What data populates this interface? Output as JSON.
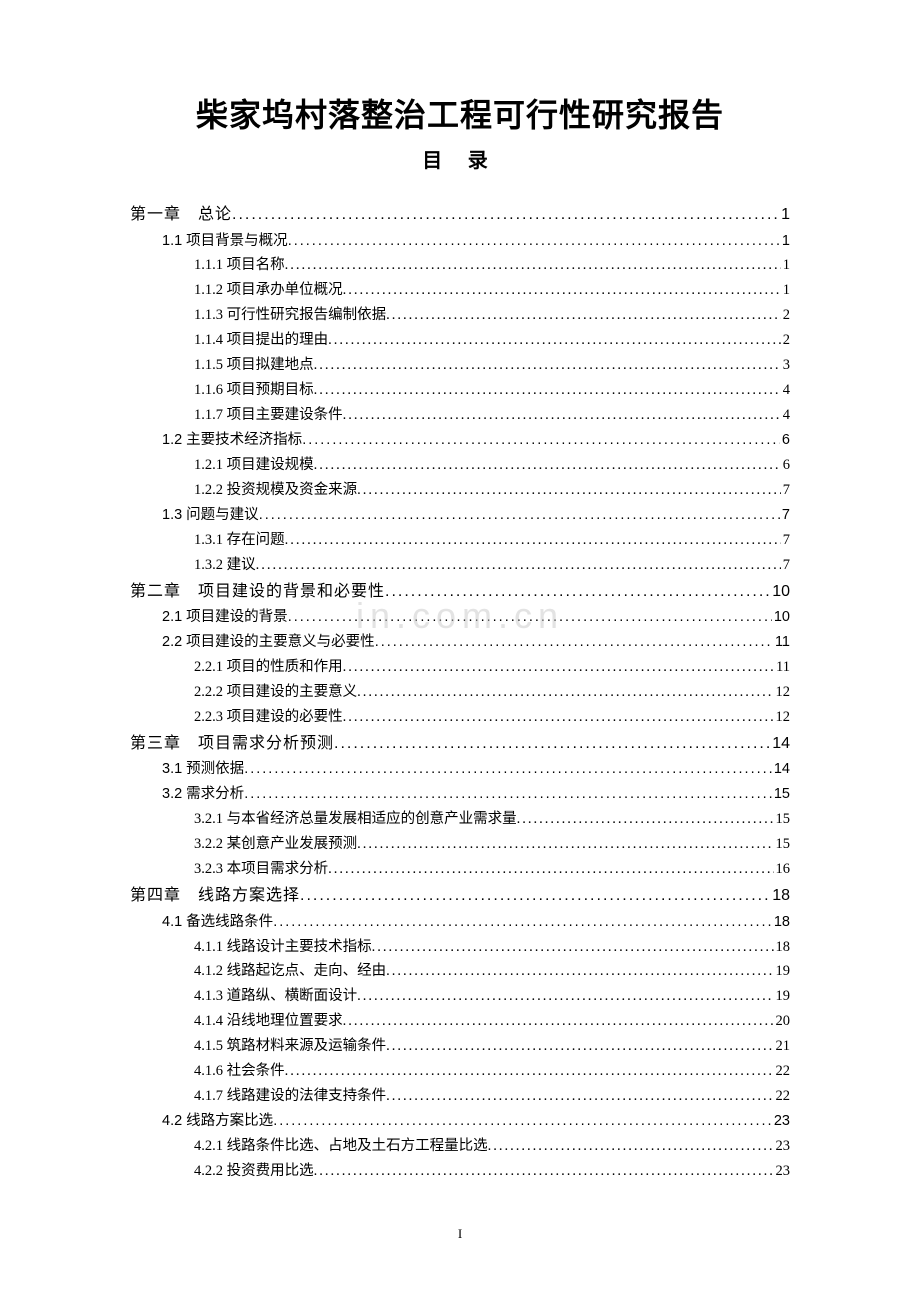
{
  "document": {
    "main_title": "柴家坞村落整治工程可行性研究报告",
    "sub_title": "目 录",
    "watermark": "in.com.cn",
    "page_number": "I",
    "colors": {
      "background": "#ffffff",
      "text": "#000000",
      "watermark": "rgba(200,200,200,0.5)"
    },
    "fonts": {
      "title_family": "SimHei",
      "body_family": "SimSun",
      "title_size": 32,
      "subtitle_size": 20,
      "chapter_size": 16,
      "entry_size": 14.5
    },
    "toc": [
      {
        "level": "chapter",
        "label": "第一章",
        "title": "总论",
        "page": "1"
      },
      {
        "level": "section",
        "label": "1.1",
        "title": "项目背景与概况",
        "page": "1"
      },
      {
        "level": "subsection",
        "label": "1.1.1",
        "title": "项目名称",
        "page": "1"
      },
      {
        "level": "subsection",
        "label": "1.1.2",
        "title": "项目承办单位概况",
        "page": "1"
      },
      {
        "level": "subsection",
        "label": "1.1.3",
        "title": "可行性研究报告编制依据",
        "page": "2"
      },
      {
        "level": "subsection",
        "label": "1.1.4",
        "title": "项目提出的理由",
        "page": "2"
      },
      {
        "level": "subsection",
        "label": "1.1.5",
        "title": "项目拟建地点",
        "page": "3"
      },
      {
        "level": "subsection",
        "label": "1.1.6",
        "title": "项目预期目标",
        "page": "4"
      },
      {
        "level": "subsection",
        "label": "1.1.7",
        "title": "项目主要建设条件",
        "page": "4"
      },
      {
        "level": "section",
        "label": "1.2",
        "title": "主要技术经济指标",
        "page": "6"
      },
      {
        "level": "subsection",
        "label": "1.2.1",
        "title": "项目建设规模",
        "page": "6"
      },
      {
        "level": "subsection",
        "label": "1.2.2",
        "title": "投资规模及资金来源",
        "page": "7"
      },
      {
        "level": "section",
        "label": "1.3",
        "title": "问题与建议",
        "page": "7"
      },
      {
        "level": "subsection",
        "label": "1.3.1",
        "title": "存在问题",
        "page": "7"
      },
      {
        "level": "subsection",
        "label": "1.3.2",
        "title": "建议",
        "page": "7"
      },
      {
        "level": "chapter",
        "label": "第二章",
        "title": "项目建设的背景和必要性",
        "page": "10"
      },
      {
        "level": "section",
        "label": "2.1",
        "title": " 项目建设的背景",
        "page": "10"
      },
      {
        "level": "section",
        "label": "2.2",
        "title": " 项目建设的主要意义与必要性",
        "page": "11"
      },
      {
        "level": "subsection",
        "label": "2.2.1",
        "title": "项目的性质和作用",
        "page": "11"
      },
      {
        "level": "subsection",
        "label": "2.2.2",
        "title": "项目建设的主要意义",
        "page": "12"
      },
      {
        "level": "subsection",
        "label": "2.2.3",
        "title": "项目建设的必要性",
        "page": "12"
      },
      {
        "level": "chapter",
        "label": "第三章",
        "title": "项目需求分析预测",
        "page": "14"
      },
      {
        "level": "section",
        "label": "3.1",
        "title": "预测依据",
        "page": "14"
      },
      {
        "level": "section",
        "label": "3.2",
        "title": "需求分析",
        "page": "15"
      },
      {
        "level": "subsection",
        "label": "3.2.1",
        "title": "与本省经济总量发展相适应的创意产业需求量",
        "page": "15"
      },
      {
        "level": "subsection",
        "label": "3.2.2",
        "title": "某创意产业发展预测",
        "page": "15"
      },
      {
        "level": "subsection",
        "label": "3.2.3",
        "title": " 本项目需求分析",
        "page": "16"
      },
      {
        "level": "chapter",
        "label": "第四章",
        "title": "线路方案选择",
        "page": "18"
      },
      {
        "level": "section",
        "label": "4.1",
        "title": "备选线路条件",
        "page": "18"
      },
      {
        "level": "subsection",
        "label": "4.1.1",
        "title": "线路设计主要技术指标",
        "page": "18"
      },
      {
        "level": "subsection",
        "label": "4.1.2",
        "title": "线路起讫点、走向、经由",
        "page": "19"
      },
      {
        "level": "subsection",
        "label": "4.1.3",
        "title": "道路纵、横断面设计",
        "page": "19"
      },
      {
        "level": "subsection",
        "label": "4.1.4",
        "title": "沿线地理位置要求",
        "page": "20"
      },
      {
        "level": "subsection",
        "label": "4.1.5",
        "title": "筑路材料来源及运输条件",
        "page": "21"
      },
      {
        "level": "subsection",
        "label": "4.1.6",
        "title": "社会条件",
        "page": "22"
      },
      {
        "level": "subsection",
        "label": "4.1.7",
        "title": "线路建设的法律支持条件",
        "page": "22"
      },
      {
        "level": "section",
        "label": "4.2",
        "title": "线路方案比选",
        "page": "23"
      },
      {
        "level": "subsection",
        "label": "4.2.1",
        "title": "线路条件比选、占地及土石方工程量比选",
        "page": "23"
      },
      {
        "level": "subsection",
        "label": "4.2.2",
        "title": "投资费用比选",
        "page": "23"
      }
    ]
  }
}
